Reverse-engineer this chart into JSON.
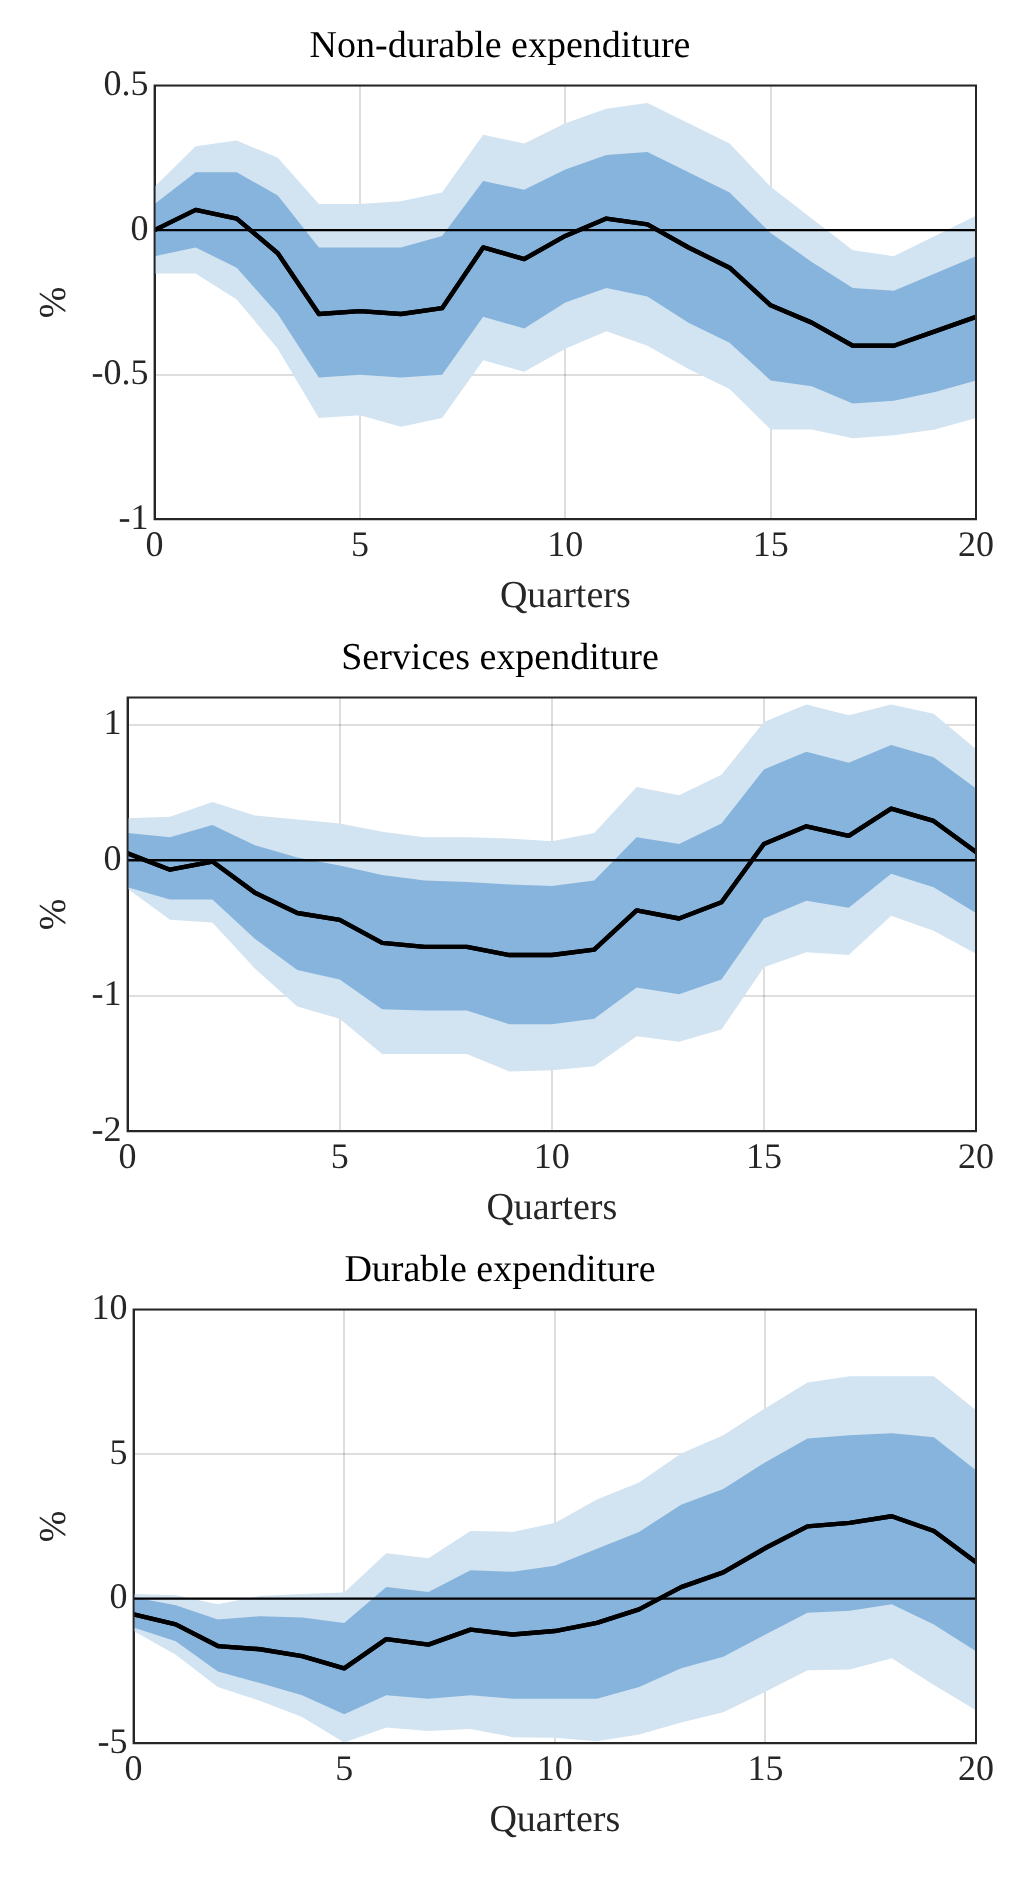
{
  "chart_data": [
    {
      "type": "line",
      "title": "Non-durable expenditure",
      "xlabel": "Quarters",
      "ylabel": "%",
      "x": [
        0,
        1,
        2,
        3,
        4,
        5,
        6,
        7,
        8,
        9,
        10,
        11,
        12,
        13,
        14,
        15,
        16,
        17,
        18,
        19,
        20
      ],
      "xlim": [
        0,
        20
      ],
      "xticks": [
        0,
        5,
        10,
        15,
        20
      ],
      "ylim": [
        -1,
        0.5
      ],
      "yticks": [
        -1,
        -0.5,
        0,
        0.5
      ],
      "grid": true,
      "ref_lines": [
        {
          "axis": "y",
          "value": 0,
          "color": "#000000"
        }
      ],
      "series": [
        {
          "type": "line",
          "color": "#000000",
          "values": [
            0,
            0.07,
            0.04,
            -0.08,
            -0.29,
            -0.28,
            -0.29,
            -0.27,
            -0.06,
            -0.1,
            -0.02,
            0.04,
            0.02,
            -0.06,
            -0.13,
            -0.26,
            -0.32,
            -0.4,
            -0.4,
            -0.35,
            -0.3
          ],
          "lower": [
            -0.15,
            -0.15,
            -0.24,
            -0.41,
            -0.65,
            -0.64,
            -0.68,
            -0.65,
            -0.45,
            -0.49,
            -0.41,
            -0.35,
            -0.4,
            -0.48,
            -0.55,
            -0.69,
            -0.69,
            -0.72,
            -0.71,
            -0.69,
            -0.65
          ],
          "upper": [
            0.15,
            0.29,
            0.31,
            0.25,
            0.09,
            0.09,
            0.1,
            0.13,
            0.33,
            0.3,
            0.37,
            0.42,
            0.44,
            0.37,
            0.3,
            0.15,
            0.04,
            -0.07,
            -0.09,
            -0.02,
            0.05
          ]
        },
        {
          "type": "line",
          "color": "#000000",
          "values": [
            0,
            0.07,
            0.04,
            -0.08,
            -0.29,
            -0.28,
            -0.29,
            -0.27,
            -0.06,
            -0.1,
            -0.02,
            0.04,
            0.02,
            -0.06,
            -0.13,
            -0.26,
            -0.32,
            -0.4,
            -0.4,
            -0.35,
            -0.3
          ],
          "lower": [
            -0.09,
            -0.06,
            -0.13,
            -0.29,
            -0.51,
            -0.5,
            -0.51,
            -0.5,
            -0.3,
            -0.34,
            -0.25,
            -0.2,
            -0.23,
            -0.32,
            -0.39,
            -0.52,
            -0.54,
            -0.6,
            -0.59,
            -0.56,
            -0.52
          ],
          "upper": [
            0.09,
            0.2,
            0.2,
            0.12,
            -0.06,
            -0.06,
            -0.06,
            -0.02,
            0.17,
            0.14,
            0.21,
            0.26,
            0.27,
            0.2,
            0.13,
            -0.01,
            -0.11,
            -0.2,
            -0.21,
            -0.15,
            -0.09
          ]
        }
      ]
    },
    {
      "type": "line",
      "title": "Services expenditure",
      "xlabel": "Quarters",
      "ylabel": "%",
      "x": [
        0,
        1,
        2,
        3,
        4,
        5,
        6,
        7,
        8,
        9,
        10,
        11,
        12,
        13,
        14,
        15,
        16,
        17,
        18,
        19,
        20
      ],
      "xlim": [
        0,
        20
      ],
      "xticks": [
        0,
        5,
        10,
        15,
        20
      ],
      "ylim": [
        -2,
        1.2
      ],
      "yticks": [
        -2,
        -1,
        0,
        1
      ],
      "grid": true,
      "ref_lines": [
        {
          "axis": "y",
          "value": 0,
          "color": "#000000"
        }
      ],
      "series": [
        {
          "type": "line",
          "color": "#000000",
          "values": [
            0.05,
            -0.07,
            -0.01,
            -0.24,
            -0.39,
            -0.44,
            -0.61,
            -0.64,
            -0.64,
            -0.7,
            -0.7,
            -0.66,
            -0.37,
            -0.43,
            -0.31,
            0.12,
            0.25,
            0.18,
            0.38,
            0.29,
            0.06
          ],
          "lower": [
            -0.21,
            -0.44,
            -0.46,
            -0.8,
            -1.08,
            -1.17,
            -1.43,
            -1.43,
            -1.43,
            -1.56,
            -1.55,
            -1.52,
            -1.3,
            -1.34,
            -1.25,
            -0.79,
            -0.68,
            -0.7,
            -0.41,
            -0.52,
            -0.69
          ],
          "upper": [
            0.31,
            0.32,
            0.43,
            0.33,
            0.3,
            0.27,
            0.21,
            0.17,
            0.17,
            0.16,
            0.14,
            0.2,
            0.54,
            0.48,
            0.63,
            1.02,
            1.15,
            1.07,
            1.15,
            1.08,
            0.82
          ]
        },
        {
          "type": "line",
          "color": "#000000",
          "values": [
            0.05,
            -0.07,
            -0.01,
            -0.24,
            -0.39,
            -0.44,
            -0.61,
            -0.64,
            -0.64,
            -0.7,
            -0.7,
            -0.66,
            -0.37,
            -0.43,
            -0.31,
            0.12,
            0.25,
            0.18,
            0.38,
            0.29,
            0.06
          ],
          "lower": [
            -0.2,
            -0.29,
            -0.29,
            -0.58,
            -0.81,
            -0.88,
            -1.1,
            -1.11,
            -1.11,
            -1.21,
            -1.21,
            -1.17,
            -0.94,
            -0.99,
            -0.88,
            -0.43,
            -0.3,
            -0.35,
            -0.1,
            -0.2,
            -0.39
          ],
          "upper": [
            0.2,
            0.17,
            0.26,
            0.11,
            0.02,
            -0.04,
            -0.11,
            -0.15,
            -0.16,
            -0.18,
            -0.19,
            -0.15,
            0.17,
            0.12,
            0.27,
            0.67,
            0.8,
            0.72,
            0.85,
            0.76,
            0.53
          ]
        }
      ]
    },
    {
      "type": "line",
      "title": "Durable expenditure",
      "xlabel": "Quarters",
      "ylabel": "%",
      "x": [
        0,
        1,
        2,
        3,
        4,
        5,
        6,
        7,
        8,
        9,
        10,
        11,
        12,
        13,
        14,
        15,
        16,
        17,
        18,
        19,
        20
      ],
      "xlim": [
        0,
        20
      ],
      "xticks": [
        0,
        5,
        10,
        15,
        20
      ],
      "ylim": [
        -5,
        10
      ],
      "yticks": [
        -5,
        0,
        5,
        10
      ],
      "grid": true,
      "ref_lines": [
        {
          "axis": "y",
          "value": 0,
          "color": "#000000"
        }
      ],
      "series": [
        {
          "type": "line",
          "color": "#000000",
          "values": [
            -0.54,
            -0.89,
            -1.64,
            -1.75,
            -1.99,
            -2.41,
            -1.4,
            -1.59,
            -1.07,
            -1.24,
            -1.12,
            -0.84,
            -0.37,
            0.4,
            0.91,
            1.75,
            2.5,
            2.62,
            2.85,
            2.34,
            1.26
          ],
          "lower": [
            -1.12,
            -1.94,
            -3.06,
            -3.53,
            -4.09,
            -4.98,
            -4.46,
            -4.58,
            -4.51,
            -4.79,
            -4.81,
            -4.93,
            -4.7,
            -4.28,
            -3.93,
            -3.22,
            -2.48,
            -2.45,
            -2.06,
            -2.99,
            -3.86
          ],
          "upper": [
            0.16,
            0.12,
            -0.19,
            0.09,
            0.16,
            0.21,
            1.57,
            1.4,
            2.34,
            2.31,
            2.62,
            3.43,
            4.02,
            5.02,
            5.65,
            6.59,
            7.48,
            7.69,
            7.69,
            7.69,
            6.52
          ]
        },
        {
          "type": "line",
          "color": "#000000",
          "values": [
            -0.54,
            -0.89,
            -1.64,
            -1.75,
            -1.99,
            -2.41,
            -1.4,
            -1.59,
            -1.07,
            -1.24,
            -1.12,
            -0.84,
            -0.37,
            0.4,
            0.91,
            1.75,
            2.5,
            2.62,
            2.85,
            2.34,
            1.26
          ],
          "lower": [
            -1,
            -1.47,
            -2.52,
            -2.92,
            -3.34,
            -4,
            -3.34,
            -3.46,
            -3.34,
            -3.46,
            -3.46,
            -3.46,
            -3.06,
            -2.41,
            -2.01,
            -1.24,
            -0.49,
            -0.42,
            -0.19,
            -0.89,
            -1.82
          ],
          "upper": [
            0.05,
            -0.23,
            -0.72,
            -0.61,
            -0.65,
            -0.84,
            0.4,
            0.23,
            0.98,
            0.93,
            1.14,
            1.73,
            2.31,
            3.25,
            3.79,
            4.72,
            5.54,
            5.65,
            5.72,
            5.58,
            4.44
          ]
        }
      ]
    }
  ]
}
